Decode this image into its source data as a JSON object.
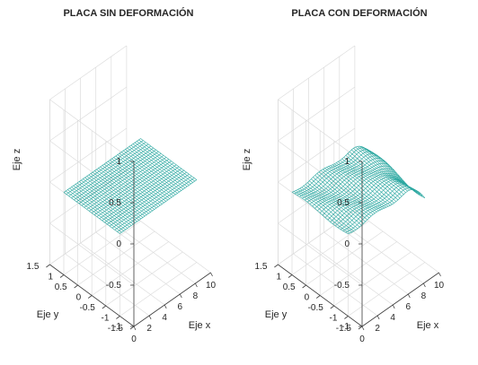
{
  "chart_data": [
    {
      "type": "surface",
      "title": "PLACA SIN DEFORMACIÓN",
      "xlabel": "Eje x",
      "ylabel": "Eje y",
      "zlabel": "Eje z",
      "xlim": [
        0,
        10
      ],
      "ylim": [
        -1.5,
        1.5
      ],
      "zlim": [
        -1,
        1
      ],
      "xticks": [
        "0",
        "2",
        "4",
        "6",
        "8",
        "10"
      ],
      "yticks": [
        "-1.5",
        "-1",
        "-0.5",
        "0",
        "0.5",
        "1",
        "1.5"
      ],
      "zticks": [
        "-1",
        "-0.5",
        "0",
        "0.5",
        "1"
      ],
      "grid": true,
      "mesh_color": "#2aa7a0",
      "surface": {
        "x_range": [
          0,
          10
        ],
        "y_range": [
          -1,
          1
        ],
        "z": 0
      }
    },
    {
      "type": "surface",
      "title": "PLACA CON DEFORMACIÓN",
      "xlabel": "Eje x",
      "ylabel": "Eje y",
      "zlabel": "Eje z",
      "xlim": [
        0,
        10
      ],
      "ylim": [
        -1.5,
        1.5
      ],
      "zlim": [
        -1,
        1
      ],
      "xticks": [
        "0",
        "2",
        "4",
        "6",
        "8",
        "10"
      ],
      "yticks": [
        "-1.5",
        "-1",
        "-0.5",
        "0",
        "0.5",
        "1",
        "1.5"
      ],
      "zticks": [
        "-1",
        "-0.5",
        "0",
        "0.5",
        "1"
      ],
      "grid": true,
      "mesh_color": "#2aa7a0",
      "surface": {
        "x_range": [
          0,
          10
        ],
        "y_range": [
          -1,
          1
        ],
        "deformation": "edge bending near x = 10"
      }
    }
  ]
}
